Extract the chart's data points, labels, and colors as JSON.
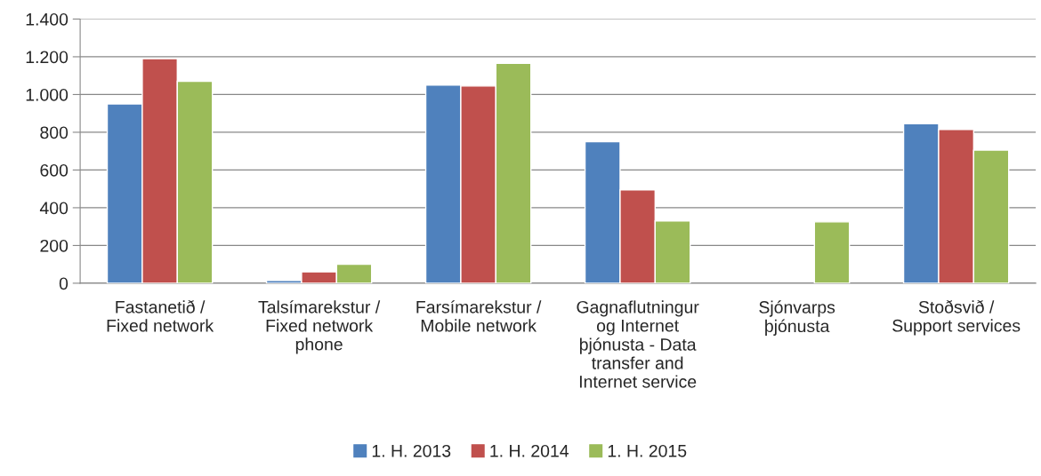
{
  "chart_data": {
    "type": "bar",
    "categories": [
      "Fastanetið /\nFixed network",
      "Talsímarekstur /\nFixed network\nphone",
      "Farsímarekstur /\nMobile network",
      "Gagnaflutningur\nog Internet\nþjónusta - Data\ntransfer and\nInternet service",
      "Sjónvarps\nþjónusta",
      "Stoðsvið /\nSupport services"
    ],
    "series": [
      {
        "name": "1. H. 2013",
        "color": "#4f81bd",
        "values": [
          950,
          15,
          1050,
          750,
          null,
          845
        ]
      },
      {
        "name": "1. H. 2014",
        "color": "#c0504d",
        "values": [
          1190,
          60,
          1045,
          495,
          null,
          815
        ]
      },
      {
        "name": "1. H. 2015",
        "color": "#9bbb59",
        "values": [
          1070,
          100,
          1165,
          330,
          325,
          705
        ]
      }
    ],
    "ylim": [
      0,
      1400
    ],
    "yticks": [
      0,
      200,
      400,
      600,
      800,
      {
        "value": 1000,
        "label": "1.000"
      },
      {
        "value": 1200,
        "label": "1.200"
      },
      {
        "value": 1400,
        "label": "1.400"
      }
    ],
    "grid": "y",
    "legend": "bottom"
  }
}
